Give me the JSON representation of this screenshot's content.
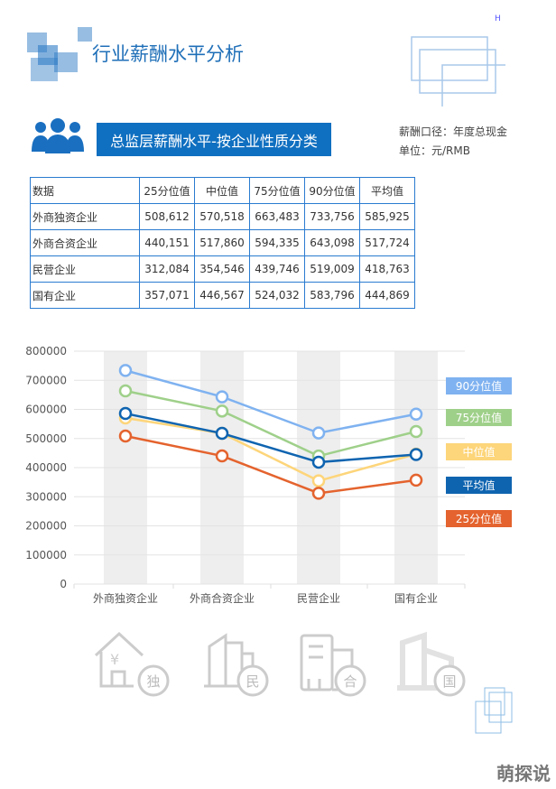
{
  "header": {
    "title": "行业薪酬水平分析",
    "corner_mark": "H"
  },
  "section": {
    "title": "总监层薪酬水平-按企业性质分类",
    "meta_basis": "薪酬口径：年度总现金",
    "meta_unit": "单位：元/RMB"
  },
  "table": {
    "headers": [
      "数据",
      "25分位值",
      "中位值",
      "75分位值",
      "90分位值",
      "平均值"
    ],
    "rows": [
      [
        "外商独资企业",
        "508,612",
        "570,518",
        "663,483",
        "733,756",
        "585,925"
      ],
      [
        "外商合资企业",
        "440,151",
        "517,860",
        "594,335",
        "643,098",
        "517,724"
      ],
      [
        "民营企业",
        "312,084",
        "354,546",
        "439,746",
        "519,009",
        "418,763"
      ],
      [
        "国有企业",
        "357,071",
        "446,567",
        "524,032",
        "583,796",
        "444,869"
      ]
    ]
  },
  "chart_data": {
    "type": "line",
    "categories": [
      "外商独资企业",
      "外商合资企业",
      "民营企业",
      "国有企业"
    ],
    "ylim": [
      0,
      800000
    ],
    "yticks": [
      "800000",
      "700000",
      "600000",
      "500000",
      "400000",
      "300000",
      "200000",
      "100000",
      "0"
    ],
    "legend_placement": "right",
    "series": [
      {
        "name": "90分位值",
        "color": "#7fb2f0",
        "values": [
          733756,
          643098,
          519009,
          583796
        ]
      },
      {
        "name": "75分位值",
        "color": "#9fd08a",
        "values": [
          663483,
          594335,
          439746,
          524032
        ]
      },
      {
        "name": "中位值",
        "color": "#fdd57a",
        "values": [
          570518,
          517860,
          354546,
          446567
        ]
      },
      {
        "name": "平均值",
        "color": "#0f64b0",
        "values": [
          585925,
          517724,
          418763,
          444869
        ]
      },
      {
        "name": "25分位值",
        "color": "#e4632e",
        "values": [
          508612,
          440151,
          312084,
          357071
        ]
      }
    ]
  },
  "icons": {
    "labels": [
      "独",
      "民",
      "合",
      "国"
    ]
  },
  "watermark": "萌探说"
}
